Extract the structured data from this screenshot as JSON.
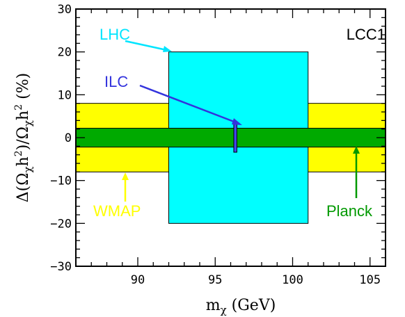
{
  "chart_data": {
    "type": "area",
    "xlim": [
      86,
      106
    ],
    "ylim": [
      -30,
      30
    ],
    "x_ticks": [
      90,
      95,
      100,
      105
    ],
    "y_ticks": [
      30,
      20,
      10,
      0,
      -10,
      -20,
      -30
    ],
    "xlabel": "m_χ (GeV)",
    "ylabel": "Δ(Ω_χh²)/Ω_χh² (%)",
    "corner_label": "LCC1",
    "regions": [
      {
        "name": "WMAP",
        "x": [
          86,
          106
        ],
        "y": [
          -8,
          8
        ],
        "color": "#ffff00",
        "z": 1
      },
      {
        "name": "LHC",
        "x": [
          92,
          101
        ],
        "y": [
          -20,
          20
        ],
        "color": "#00ffff",
        "z": 2
      },
      {
        "name": "Planck",
        "x": [
          86,
          106
        ],
        "y": [
          -2.2,
          2.2
        ],
        "color": "#00aa00",
        "z": 3
      },
      {
        "name": "ILC",
        "x": [
          96.2,
          96.4
        ],
        "y": [
          -3.4,
          3.4
        ],
        "color": "#4444ee",
        "z": 4
      }
    ],
    "annotations": [
      {
        "label": "LHC",
        "color": "#00e5ff"
      },
      {
        "label": "ILC",
        "color": "#3333dd"
      },
      {
        "label": "WMAP",
        "color": "#ffff00"
      },
      {
        "label": "Planck",
        "color": "#009900"
      }
    ]
  }
}
